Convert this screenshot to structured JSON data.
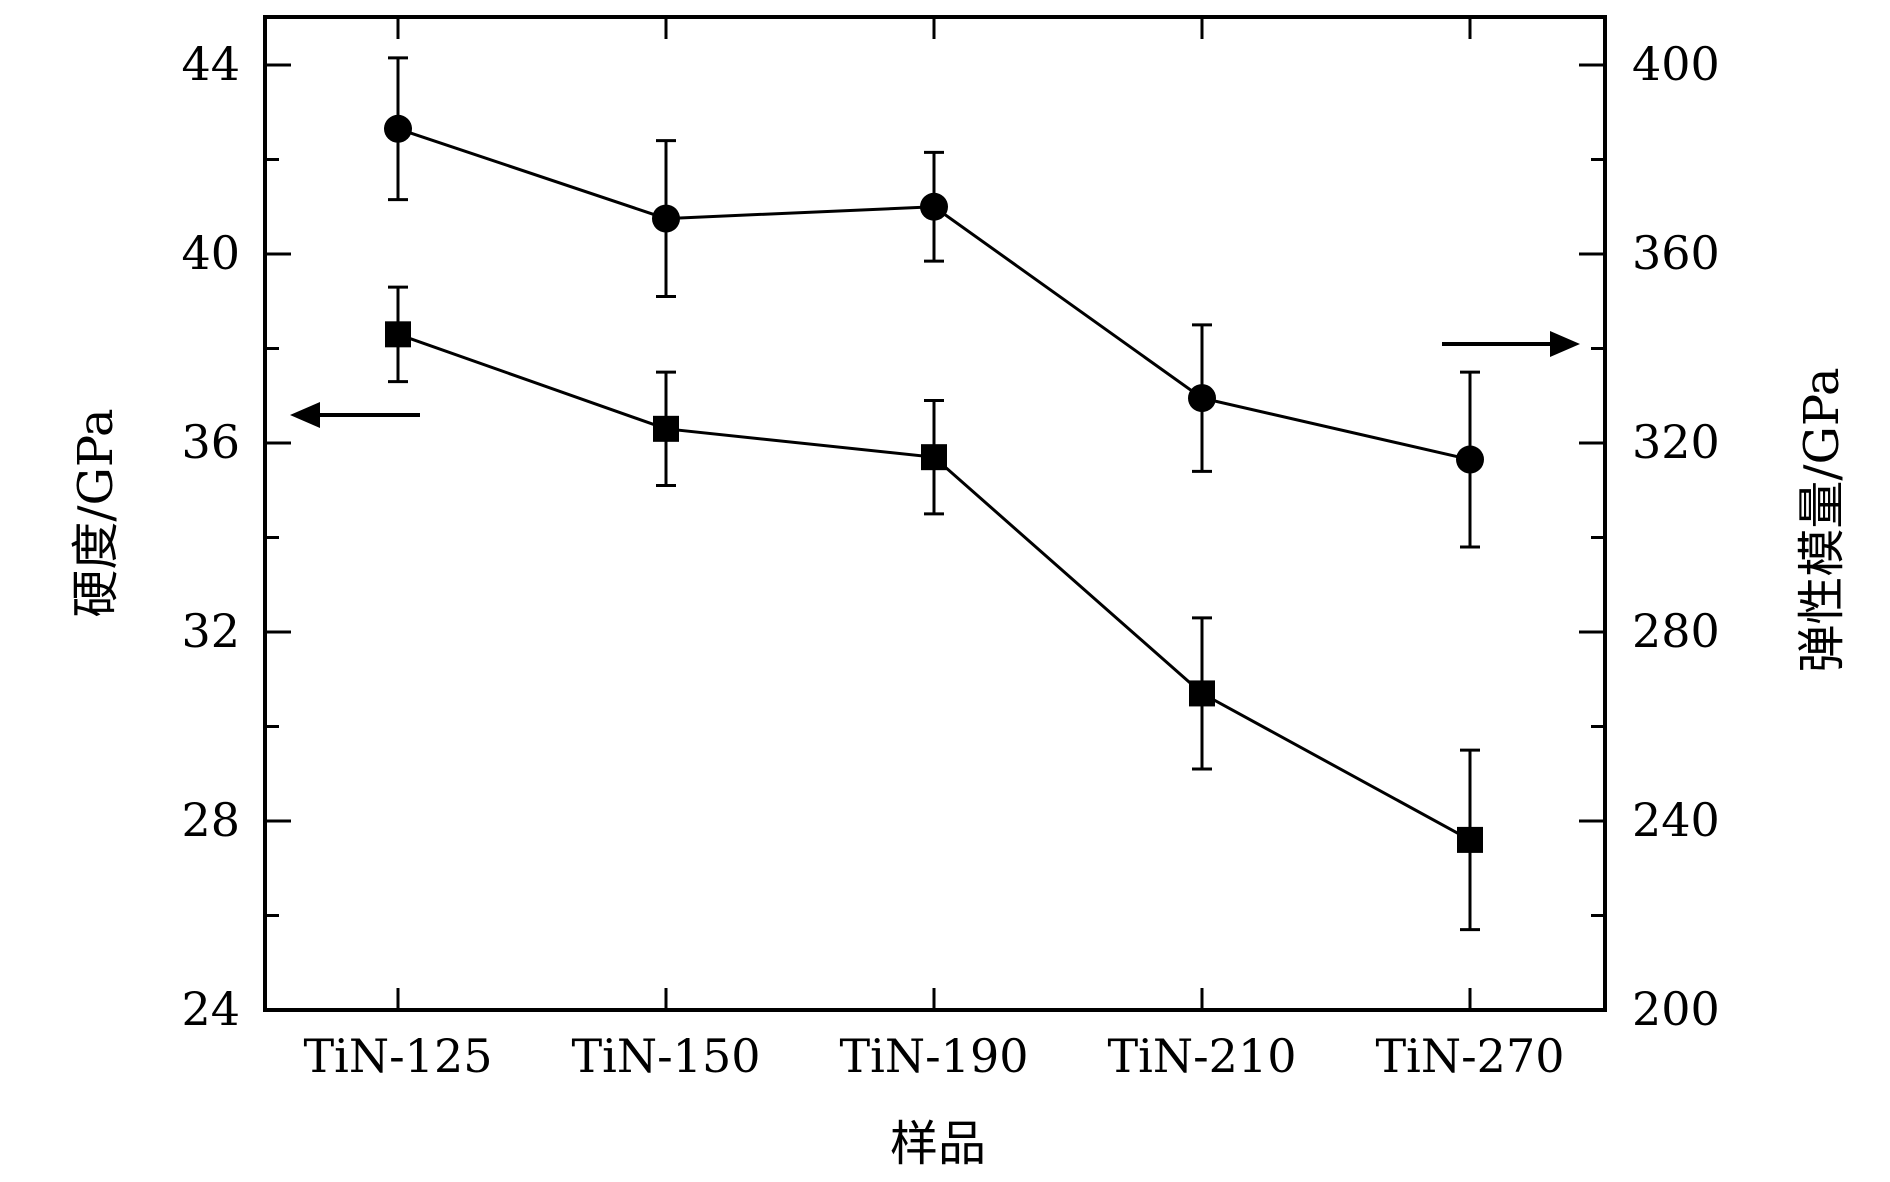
{
  "chart_data": {
    "type": "line",
    "categories": [
      "TiN-125",
      "TiN-150",
      "TiN-190",
      "TiN-210",
      "TiN-270"
    ],
    "xlabel": "样品",
    "ylabel_left": "硬度/GPa",
    "ylabel_right": "弹性模量/GPa",
    "ylim_left": [
      24,
      44
    ],
    "ylim_right": [
      200,
      400
    ],
    "yticks_left": [
      24,
      28,
      32,
      36,
      40,
      44
    ],
    "yticks_right": [
      200,
      240,
      280,
      320,
      360,
      400
    ],
    "grid": false,
    "series": [
      {
        "marker": "square",
        "axis": "left",
        "values": [
          38.3,
          36.3,
          35.7,
          30.7,
          27.6
        ],
        "errors": [
          1.0,
          1.2,
          1.2,
          1.6,
          1.9
        ]
      },
      {
        "marker": "circle",
        "axis": "right",
        "values": [
          386.5,
          367.5,
          370.0,
          329.5,
          316.5
        ],
        "errors": [
          15.0,
          16.5,
          11.5,
          15.5,
          18.5
        ]
      }
    ],
    "annotations": [
      {
        "type": "arrow",
        "direction": "left",
        "points_to_axis": "left",
        "series_marker": "square"
      },
      {
        "type": "arrow",
        "direction": "right",
        "points_to_axis": "right",
        "series_marker": "circle"
      }
    ]
  }
}
